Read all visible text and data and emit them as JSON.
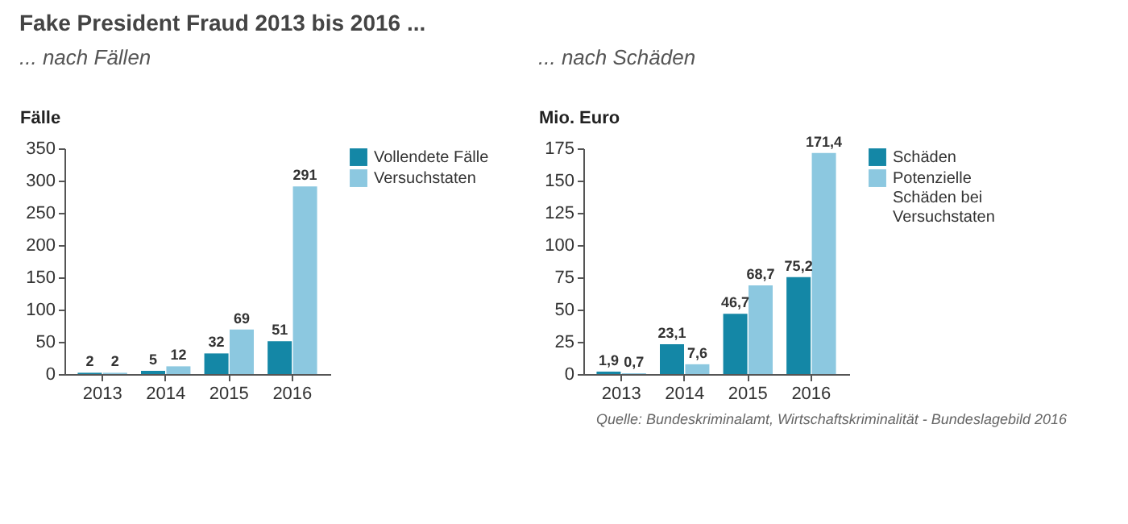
{
  "chart_data": [
    {
      "type": "bar",
      "title": "Fake President Fraud 2013 bis 2016 ...",
      "subtitle": "... nach Fällen",
      "ylabel": "Fälle",
      "categories": [
        "2013",
        "2014",
        "2015",
        "2016"
      ],
      "series": [
        {
          "name": "Vollendete Fälle",
          "color": "#1487a6",
          "values": [
            2,
            5,
            32,
            51
          ]
        },
        {
          "name": "Versuchstaten",
          "color": "#8cc8e0",
          "values": [
            2,
            12,
            69,
            291
          ]
        }
      ],
      "ylim": [
        0,
        350
      ],
      "yticks": [
        0,
        50,
        100,
        150,
        200,
        250,
        300,
        350
      ],
      "grid": false,
      "legend": "top right",
      "data_labels": true
    },
    {
      "type": "bar",
      "subtitle": "... nach Schäden",
      "ylabel": "Mio. Euro",
      "categories": [
        "2013",
        "2014",
        "2015",
        "2016"
      ],
      "series": [
        {
          "name": "Schäden",
          "color": "#1487a6",
          "values": [
            1.9,
            23.1,
            46.7,
            75.2
          ],
          "value_labels": [
            "1,9",
            "23,1",
            "46,7",
            "75,2"
          ]
        },
        {
          "name": "Potenzielle Schäden bei Versuchstaten",
          "color": "#8cc8e0",
          "values": [
            0.7,
            7.6,
            68.7,
            171.4
          ],
          "value_labels": [
            "0,7",
            "7,6",
            "68,7",
            "171,4"
          ]
        }
      ],
      "ylim": [
        0,
        175
      ],
      "yticks": [
        0,
        25,
        50,
        75,
        100,
        125,
        150,
        175
      ],
      "grid": false,
      "legend": "top right",
      "annotations": [
        "Quelle: Bundeskriminalamt, Wirtschaftskriminalität - Bundeslagebild 2016"
      ]
    }
  ]
}
